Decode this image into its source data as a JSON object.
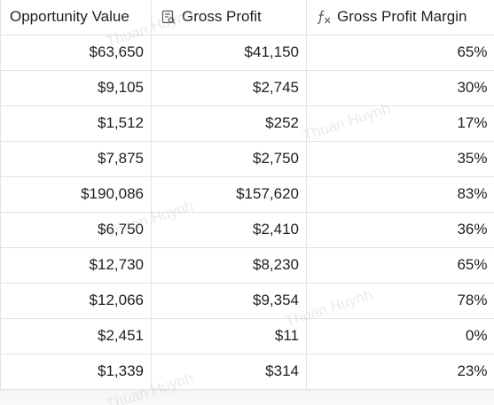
{
  "table": {
    "headers": [
      {
        "label": "Opportunity Value",
        "icon": ""
      },
      {
        "label": "Gross Profit",
        "icon": "calculated-field-icon"
      },
      {
        "label": "Gross Profit Margin",
        "icon": "function-fx-icon"
      }
    ],
    "rows": [
      {
        "opportunity_value": "$63,650",
        "gross_profit": "$41,150",
        "gross_profit_margin": "65%"
      },
      {
        "opportunity_value": "$9,105",
        "gross_profit": "$2,745",
        "gross_profit_margin": "30%"
      },
      {
        "opportunity_value": "$1,512",
        "gross_profit": "$252",
        "gross_profit_margin": "17%"
      },
      {
        "opportunity_value": "$7,875",
        "gross_profit": "$2,750",
        "gross_profit_margin": "35%"
      },
      {
        "opportunity_value": "$190,086",
        "gross_profit": "$157,620",
        "gross_profit_margin": "83%"
      },
      {
        "opportunity_value": "$6,750",
        "gross_profit": "$2,410",
        "gross_profit_margin": "36%"
      },
      {
        "opportunity_value": "$12,730",
        "gross_profit": "$8,230",
        "gross_profit_margin": "65%"
      },
      {
        "opportunity_value": "$12,066",
        "gross_profit": "$9,354",
        "gross_profit_margin": "78%"
      },
      {
        "opportunity_value": "$2,451",
        "gross_profit": "$11",
        "gross_profit_margin": "0%"
      },
      {
        "opportunity_value": "$1,339",
        "gross_profit": "$314",
        "gross_profit_margin": "23%"
      }
    ]
  },
  "watermark": {
    "text": "Thuan Huynh"
  }
}
